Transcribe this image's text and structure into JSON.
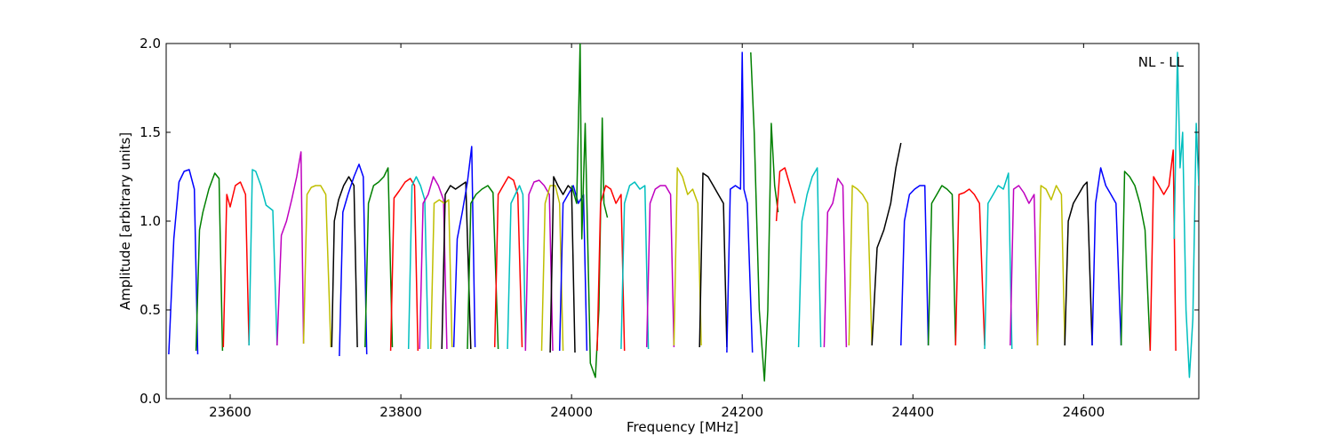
{
  "chart_data": {
    "type": "line",
    "title": "",
    "annotation": "NL - LL",
    "xlabel": "Frequency [MHz]",
    "ylabel": "Amplitude [arbitrary units]",
    "xlim": [
      23525,
      24735
    ],
    "ylim": [
      0.0,
      2.0
    ],
    "xticks": [
      23600,
      23800,
      24000,
      24200,
      24400,
      24600
    ],
    "xtick_labels": [
      "23600",
      "23800",
      "24000",
      "24200",
      "24400",
      "24600"
    ],
    "yticks": [
      0.0,
      0.5,
      1.0,
      1.5,
      2.0
    ],
    "ytick_labels": [
      "0.0",
      "0.5",
      "1.0",
      "1.5",
      "2.0"
    ],
    "grid": false,
    "legend": "none",
    "color_cycle": [
      "#0000ff",
      "#008000",
      "#ff0000",
      "#00bfbf",
      "#bf00bf",
      "#bfbf00",
      "#000000"
    ],
    "series": [
      {
        "x": [
          23528,
          23534,
          23540,
          23546,
          23552,
          23558,
          23562
        ],
        "values": [
          0.25,
          0.9,
          1.22,
          1.28,
          1.29,
          1.18,
          0.25
        ]
      },
      {
        "x": [
          23560,
          23564,
          23568,
          23575,
          23582,
          23587,
          23591
        ],
        "values": [
          0.27,
          0.95,
          1.05,
          1.18,
          1.27,
          1.24,
          0.27
        ]
      },
      {
        "x": [
          23592,
          23596,
          23600,
          23606,
          23612,
          23618,
          23622
        ],
        "values": [
          0.29,
          1.15,
          1.08,
          1.2,
          1.22,
          1.15,
          0.3
        ]
      },
      {
        "x": [
          23622,
          23626,
          23630,
          23636,
          23642,
          23650,
          23655
        ],
        "values": [
          0.3,
          1.29,
          1.28,
          1.2,
          1.09,
          1.06,
          0.3
        ]
      },
      {
        "x": [
          23655,
          23660,
          23666,
          23672,
          23678,
          23683,
          23686
        ],
        "values": [
          0.3,
          0.92,
          1.0,
          1.12,
          1.25,
          1.39,
          0.31
        ]
      },
      {
        "x": [
          23686,
          23690,
          23695,
          23700,
          23706,
          23712,
          23718
        ],
        "values": [
          0.31,
          1.15,
          1.19,
          1.2,
          1.2,
          1.15,
          0.29
        ]
      },
      {
        "x": [
          23719,
          23722,
          23727,
          23733,
          23739,
          23745,
          23749
        ],
        "values": [
          0.29,
          1.0,
          1.12,
          1.2,
          1.25,
          1.2,
          0.29
        ]
      },
      {
        "x": [
          23728,
          23732,
          23738,
          23745,
          23751,
          23756,
          23760
        ],
        "values": [
          0.24,
          1.05,
          1.15,
          1.25,
          1.32,
          1.25,
          0.25
        ]
      },
      {
        "x": [
          23758,
          23762,
          23768,
          23774,
          23780,
          23785,
          23790
        ],
        "values": [
          0.29,
          1.1,
          1.2,
          1.22,
          1.25,
          1.3,
          0.29
        ]
      },
      {
        "x": [
          23788,
          23792,
          23798,
          23805,
          23811,
          23816,
          23820
        ],
        "values": [
          0.27,
          1.13,
          1.17,
          1.22,
          1.24,
          1.2,
          0.27
        ]
      },
      {
        "x": [
          23809,
          23813,
          23818,
          23823,
          23828,
          23832
        ],
        "values": [
          0.28,
          1.2,
          1.25,
          1.2,
          1.12,
          0.28
        ]
      },
      {
        "x": [
          23822,
          23826,
          23832,
          23838,
          23844,
          23850,
          23854
        ],
        "values": [
          0.28,
          1.1,
          1.15,
          1.25,
          1.2,
          1.12,
          0.28
        ]
      },
      {
        "x": [
          23835,
          23839,
          23845,
          23851,
          23856,
          23860
        ],
        "values": [
          0.28,
          1.1,
          1.12,
          1.1,
          1.12,
          0.29
        ]
      },
      {
        "x": [
          23848,
          23852,
          23858,
          23864,
          23870,
          23876,
          23882
        ],
        "values": [
          0.28,
          1.15,
          1.2,
          1.18,
          1.2,
          1.22,
          0.28
        ]
      },
      {
        "x": [
          23862,
          23866,
          23872,
          23878,
          23883,
          23887
        ],
        "values": [
          0.29,
          0.9,
          1.05,
          1.22,
          1.42,
          0.29
        ]
      },
      {
        "x": [
          23878,
          23882,
          23888,
          23895,
          23902,
          23908,
          23914
        ],
        "values": [
          0.28,
          1.1,
          1.15,
          1.18,
          1.2,
          1.16,
          0.28
        ]
      },
      {
        "x": [
          23910,
          23914,
          23920,
          23926,
          23932,
          23937,
          23942
        ],
        "values": [
          0.29,
          1.15,
          1.2,
          1.25,
          1.23,
          1.15,
          0.29
        ]
      },
      {
        "x": [
          23925,
          23929,
          23934,
          23939,
          23943,
          23946
        ],
        "values": [
          0.28,
          1.1,
          1.15,
          1.2,
          1.15,
          0.28
        ]
      },
      {
        "x": [
          23946,
          23950,
          23956,
          23962,
          23968,
          23974,
          23978
        ],
        "values": [
          0.27,
          1.15,
          1.22,
          1.23,
          1.2,
          1.15,
          0.27
        ]
      },
      {
        "x": [
          23965,
          23969,
          23975,
          23981,
          23986,
          23990
        ],
        "values": [
          0.27,
          1.1,
          1.2,
          1.2,
          1.1,
          0.27
        ]
      },
      {
        "x": [
          23975,
          23979,
          23984,
          23990,
          23996,
          24000,
          24004
        ],
        "values": [
          0.26,
          1.25,
          1.2,
          1.15,
          1.2,
          1.18,
          0.26
        ]
      },
      {
        "x": [
          23986,
          23990,
          23996,
          24002,
          24008,
          24014,
          24018
        ],
        "values": [
          0.27,
          1.1,
          1.15,
          1.2,
          1.1,
          1.15,
          0.27
        ]
      },
      {
        "x": [
          24000,
          24006,
          24010,
          24012,
          24016,
          24022,
          24028,
          24032,
          24036,
          24038,
          24042
        ],
        "values": [
          1.2,
          1.1,
          2.0,
          0.9,
          1.55,
          0.2,
          0.12,
          0.5,
          1.58,
          1.1,
          1.02
        ]
      },
      {
        "x": [
          24030,
          24034,
          24040,
          24046,
          24052,
          24058,
          24062
        ],
        "values": [
          0.27,
          1.1,
          1.2,
          1.18,
          1.1,
          1.15,
          0.27
        ]
      },
      {
        "x": [
          24058,
          24062,
          24068,
          24074,
          24080,
          24086,
          24090
        ],
        "values": [
          0.28,
          1.1,
          1.2,
          1.22,
          1.18,
          1.2,
          0.28
        ]
      },
      {
        "x": [
          24088,
          24092,
          24098,
          24104,
          24110,
          24116,
          24120
        ],
        "values": [
          0.29,
          1.1,
          1.18,
          1.2,
          1.2,
          1.15,
          0.29
        ]
      },
      {
        "x": [
          24120,
          24124,
          24130,
          24136,
          24142,
          24148,
          24152
        ],
        "values": [
          0.3,
          1.3,
          1.25,
          1.15,
          1.18,
          1.1,
          0.3
        ]
      },
      {
        "x": [
          24150,
          24154,
          24160,
          24166,
          24172,
          24178,
          24182
        ],
        "values": [
          0.29,
          1.27,
          1.25,
          1.2,
          1.15,
          1.1,
          0.29
        ]
      },
      {
        "x": [
          24182,
          24186,
          24192,
          24198,
          24200,
          24202,
          24206,
          24212
        ],
        "values": [
          0.26,
          1.18,
          1.2,
          1.18,
          1.95,
          1.18,
          1.1,
          0.26
        ]
      },
      {
        "x": [
          24210,
          24214,
          24220,
          24226,
          24230,
          24234,
          24238,
          24242
        ],
        "values": [
          1.95,
          1.5,
          0.5,
          0.1,
          0.5,
          1.55,
          1.2,
          1.05
        ]
      },
      {
        "x": [
          24240,
          24244,
          24250,
          24256,
          24262
        ],
        "values": [
          1.0,
          1.28,
          1.3,
          1.2,
          1.1
        ]
      },
      {
        "x": [
          24266,
          24270,
          24276,
          24282,
          24288,
          24292
        ],
        "values": [
          0.29,
          1.0,
          1.15,
          1.25,
          1.3,
          0.29
        ]
      },
      {
        "x": [
          24296,
          24300,
          24306,
          24312,
          24318,
          24322
        ],
        "values": [
          0.29,
          1.05,
          1.1,
          1.24,
          1.2,
          0.29
        ]
      },
      {
        "x": [
          24325,
          24329,
          24335,
          24341,
          24347,
          24352
        ],
        "values": [
          0.3,
          1.2,
          1.18,
          1.15,
          1.1,
          0.3
        ]
      },
      {
        "x": [
          24352,
          24358,
          24366,
          24374,
          24380,
          24386
        ],
        "values": [
          0.3,
          0.85,
          0.95,
          1.1,
          1.3,
          1.44
        ]
      },
      {
        "x": [
          24386,
          24390,
          24396,
          24402,
          24408,
          24414,
          24418
        ],
        "values": [
          0.3,
          1.0,
          1.15,
          1.18,
          1.2,
          1.2,
          0.3
        ]
      },
      {
        "x": [
          24418,
          24422,
          24428,
          24434,
          24440,
          24446,
          24450
        ],
        "values": [
          0.3,
          1.1,
          1.15,
          1.2,
          1.18,
          1.15,
          0.3
        ]
      },
      {
        "x": [
          24450,
          24454,
          24460,
          24466,
          24472,
          24478,
          24484
        ],
        "values": [
          0.3,
          1.15,
          1.16,
          1.18,
          1.15,
          1.1,
          0.3
        ]
      },
      {
        "x": [
          24484,
          24488,
          24494,
          24500,
          24506,
          24512,
          24516
        ],
        "values": [
          0.28,
          1.1,
          1.15,
          1.2,
          1.18,
          1.27,
          0.28
        ]
      },
      {
        "x": [
          24514,
          24518,
          24524,
          24530,
          24536,
          24542,
          24546
        ],
        "values": [
          0.3,
          1.18,
          1.2,
          1.16,
          1.1,
          1.15,
          0.3
        ]
      },
      {
        "x": [
          24546,
          24550,
          24556,
          24562,
          24568,
          24574,
          24578
        ],
        "values": [
          0.3,
          1.2,
          1.18,
          1.12,
          1.2,
          1.15,
          0.3
        ]
      },
      {
        "x": [
          24578,
          24582,
          24588,
          24594,
          24600,
          24604,
          24610
        ],
        "values": [
          0.3,
          1.0,
          1.1,
          1.15,
          1.2,
          1.22,
          0.3
        ]
      },
      {
        "x": [
          24610,
          24614,
          24620,
          24626,
          24632,
          24638,
          24644
        ],
        "values": [
          0.3,
          1.1,
          1.3,
          1.2,
          1.15,
          1.1,
          0.3
        ]
      },
      {
        "x": [
          24644,
          24648,
          24654,
          24660,
          24666,
          24672,
          24678
        ],
        "values": [
          0.3,
          1.28,
          1.25,
          1.2,
          1.1,
          0.95,
          0.27
        ]
      },
      {
        "x": [
          24678,
          24682,
          24688,
          24694,
          24700,
          24705,
          24708
        ],
        "values": [
          0.27,
          1.25,
          1.2,
          1.15,
          1.2,
          1.4,
          0.27
        ]
      },
      {
        "x": [
          24706,
          24710,
          24713,
          24716,
          24720,
          24724,
          24728,
          24732,
          24735
        ],
        "values": [
          0.9,
          1.95,
          1.3,
          1.5,
          0.5,
          0.12,
          0.45,
          1.55,
          1.2
        ]
      }
    ]
  }
}
